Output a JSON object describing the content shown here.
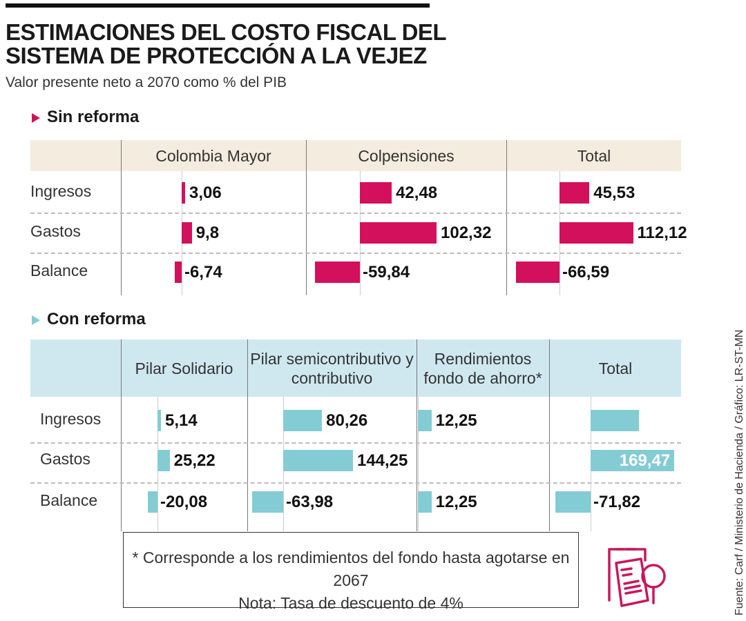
{
  "title_line1": "ESTIMACIONES DEL COSTO FISCAL DEL",
  "title_line2": "SISTEMA DE PROTECCIÓN A LA VEJEZ",
  "subtitle": "Valor presente neto a 2070 como % del PIB",
  "source": "Fuente: Carf / Ministerio de Hacienda / Gráfico: LR-ST-MN",
  "footnote_line1": "* Corresponde a los rendimientos del fondo hasta agotarse en 2067",
  "footnote_line2": "Nota: Tasa de descuento de 4%",
  "icon": "document-magnifier-icon",
  "colors": {
    "sin_reforma": "#d3105b",
    "con_reforma": "#84ccd4",
    "sin_header": "#f4ecdf",
    "con_header": "#cfe8f0"
  },
  "chart_data": [
    {
      "type": "bar",
      "title": "Sin reforma",
      "rows": [
        "Ingresos",
        "Gastos",
        "Balance"
      ],
      "columns": [
        {
          "name": "Colombia Mayor",
          "values": [
            3.06,
            9.8,
            -6.74
          ],
          "labels": [
            "3,06",
            "9,8",
            "-6,74"
          ]
        },
        {
          "name": "Colpensiones",
          "values": [
            42.48,
            102.32,
            -59.84
          ],
          "labels": [
            "42,48",
            "102,32",
            "-59,84"
          ]
        },
        {
          "name": "Total",
          "values": [
            45.53,
            112.12,
            -66.59
          ],
          "labels": [
            "45,53",
            "112,12",
            "-66,59"
          ]
        }
      ]
    },
    {
      "type": "bar",
      "title": "Con reforma",
      "rows": [
        "Ingresos",
        "Gastos",
        "Balance"
      ],
      "columns": [
        {
          "name": "Pilar Solidario",
          "values": [
            5.14,
            25.22,
            -20.08
          ],
          "labels": [
            "5,14",
            "25,22",
            "-20,08"
          ]
        },
        {
          "name": "Pilar semicontributivo y contributivo",
          "values": [
            80.26,
            144.25,
            -63.98
          ],
          "labels": [
            "80,26",
            "144,25",
            "-63,98"
          ]
        },
        {
          "name": "Rendimientos fondo de ahorro*",
          "values": [
            12.25,
            null,
            12.25
          ],
          "labels": [
            "12,25",
            "",
            "12,25"
          ]
        },
        {
          "name": "Total",
          "values": [
            97.65,
            169.47,
            -71.82
          ],
          "labels": [
            "",
            "169,47",
            "-71,82"
          ]
        }
      ]
    }
  ]
}
